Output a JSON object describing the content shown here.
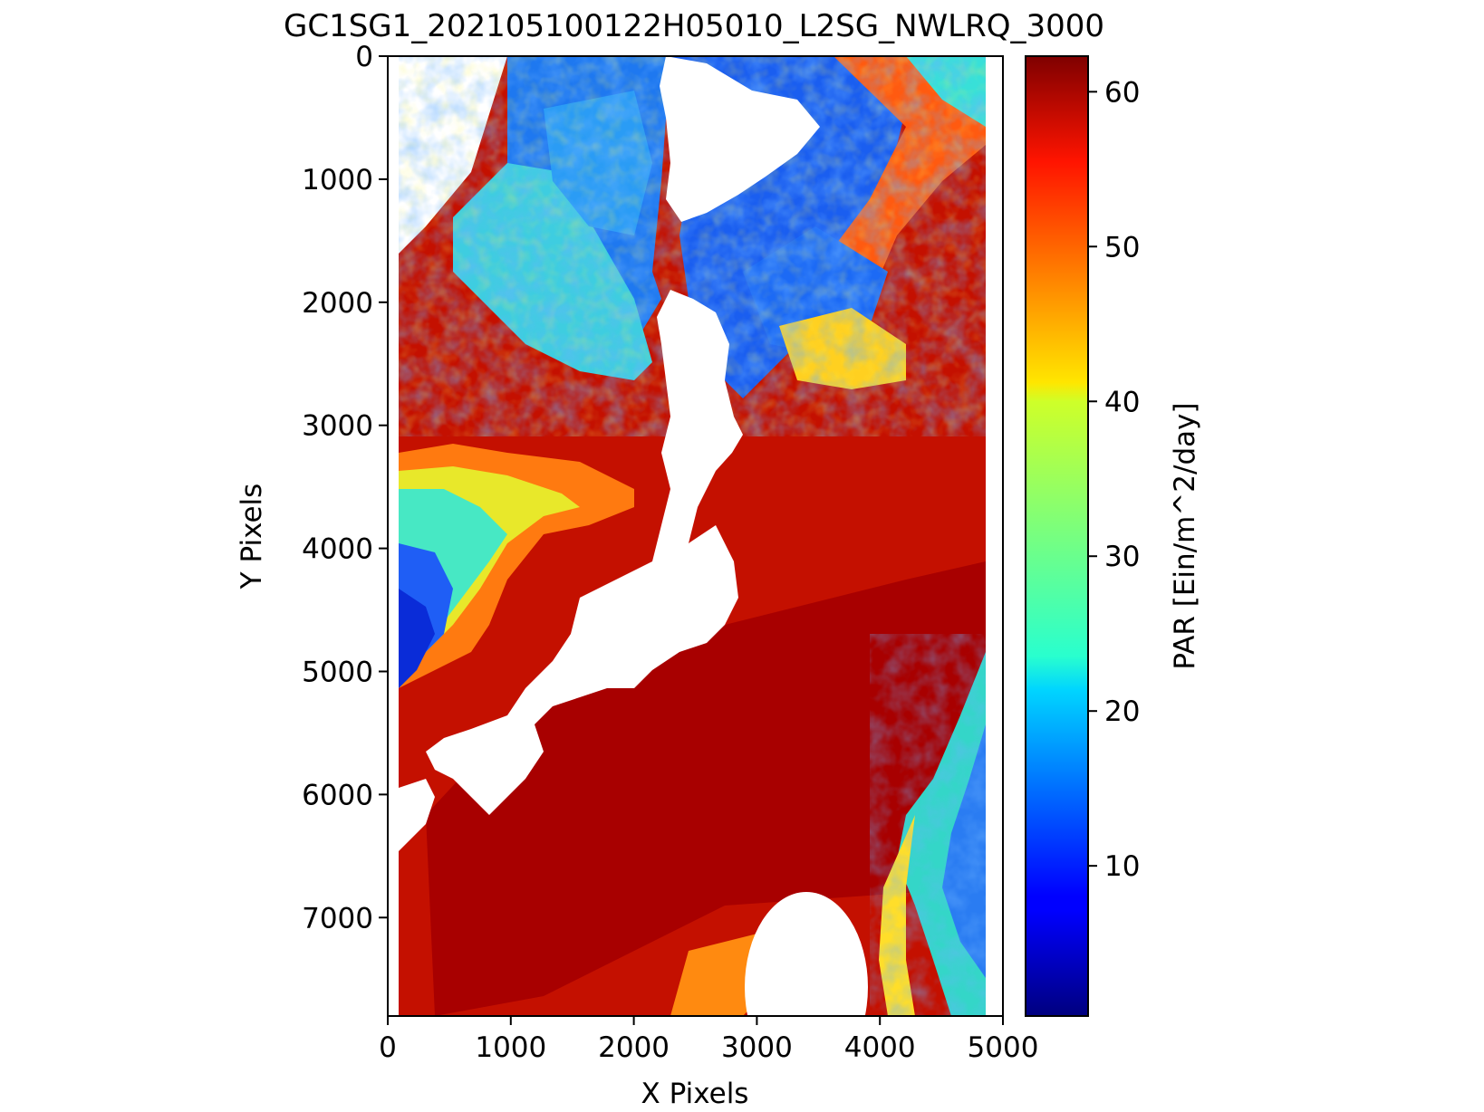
{
  "chart_data": {
    "type": "heatmap",
    "title": "GC1SG1_202105100122H05010_L2SG_NWLRQ_3000",
    "xlabel": "X Pixels",
    "ylabel": "Y Pixels",
    "colorbar_label": "PAR [Ein/m^2/day]",
    "xlim": [
      0,
      5000
    ],
    "ylim": [
      7800,
      0
    ],
    "x_ticks": [
      0,
      1000,
      2000,
      3000,
      4000,
      5000
    ],
    "y_ticks": [
      0,
      1000,
      2000,
      3000,
      4000,
      5000,
      6000,
      7000
    ],
    "colorbar_range": [
      0.3,
      62.3
    ],
    "colorbar_ticks": [
      10,
      20,
      30,
      40,
      50,
      60
    ],
    "colormap": "jet",
    "no_data_color": "#ffffff",
    "grid": false,
    "regions": {
      "clear_sky_ocean": "58-62 (dark red)",
      "cloudy_areas": "5-40 (blue to yellow)",
      "land_and_outside_swath": "no data (white)"
    }
  }
}
